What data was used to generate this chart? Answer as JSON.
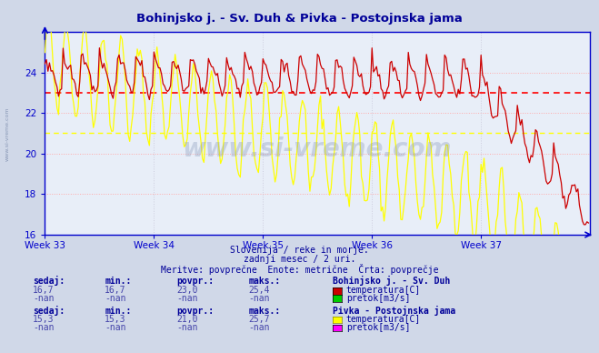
{
  "title": "Bohinjsko j. - Sv. Duh & Pivka - Postojnska jama",
  "title_color": "#000099",
  "bg_color": "#d0d8e8",
  "plot_bg_color": "#e8eef8",
  "grid_color_h": "#ffaaaa",
  "grid_color_v": "#ccccdd",
  "axis_color": "#0000cc",
  "week_labels": [
    "Week 33",
    "Week 34",
    "Week 35",
    "Week 36",
    "Week 37"
  ],
  "ylim": [
    16,
    26
  ],
  "yticks": [
    16,
    18,
    20,
    22,
    24
  ],
  "avg_red": 23.0,
  "avg_yellow": 21.0,
  "red_line_color": "#cc0000",
  "yellow_line_color": "#ffff00",
  "red_avg_color": "#ff0000",
  "yellow_avg_color": "#ffff00",
  "watermark": "www.si-vreme.com",
  "subtitle1": "Slovenija / reke in morje.",
  "subtitle2": "zadnji mesec / 2 uri.",
  "subtitle3": "Meritve: povprečne  Enote: metrične  Črta: povprečje",
  "stat1_label": "Bohinjsko j. - Sv. Duh",
  "stat1_sedaj": "16,7",
  "stat1_min": "16,7",
  "stat1_povpr": "23,0",
  "stat1_maks": "25,4",
  "stat1_temp_color": "#cc0000",
  "stat1_flow_color": "#00cc00",
  "stat2_label": "Pivka - Postojnska jama",
  "stat2_sedaj": "15,3",
  "stat2_min": "15,3",
  "stat2_povpr": "21,0",
  "stat2_maks": "25,7",
  "stat2_temp_color": "#ffff00",
  "stat2_flow_color": "#ff00ff",
  "text_color": "#000099",
  "label_color": "#4444aa"
}
